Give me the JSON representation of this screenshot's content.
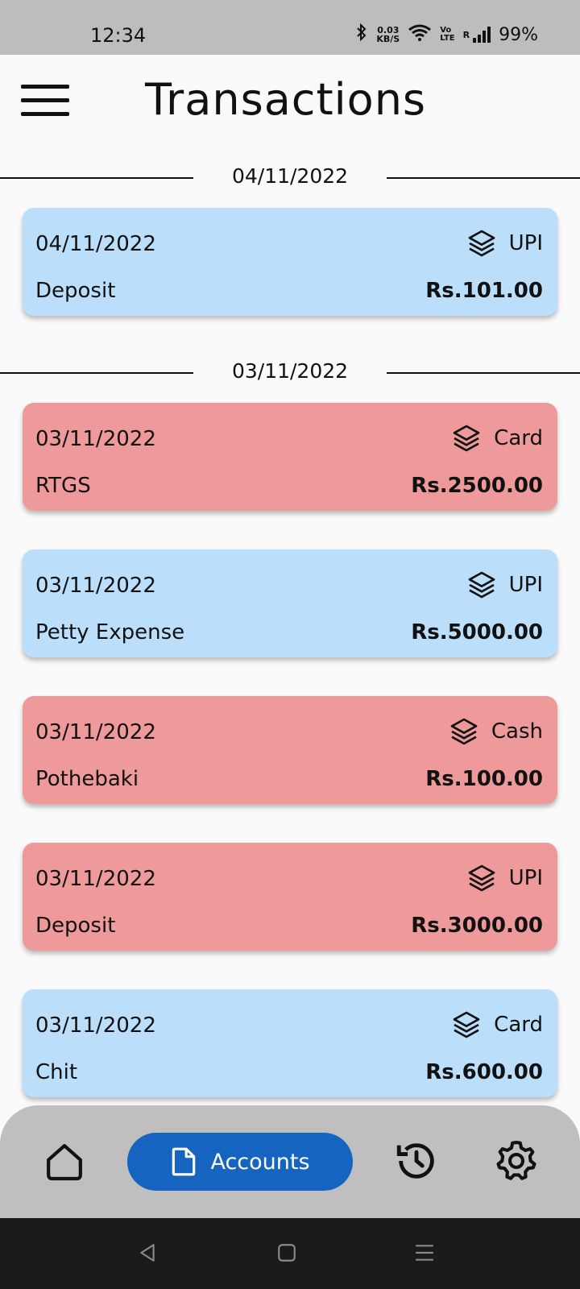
{
  "status_bar": {
    "time": "12:34",
    "net_speed_value": "0.03",
    "net_speed_unit": "KB/S",
    "volte_top": "Vo",
    "volte_bottom": "LTE",
    "roaming": "R",
    "battery": "99%"
  },
  "header": {
    "title": "Transactions",
    "menu_icon": "hamburger-menu-icon"
  },
  "groups": [
    {
      "date": "04/11/2022",
      "transactions": [
        {
          "date": "04/11/2022",
          "description": "Deposit",
          "method": "UPI",
          "amount": "Rs.101.00",
          "type": "credit"
        }
      ]
    },
    {
      "date": "03/11/2022",
      "transactions": [
        {
          "date": "03/11/2022",
          "description": "RTGS",
          "method": "Card",
          "amount": "Rs.2500.00",
          "type": "debit"
        },
        {
          "date": "03/11/2022",
          "description": "Petty Expense",
          "method": "UPI",
          "amount": "Rs.5000.00",
          "type": "credit"
        },
        {
          "date": "03/11/2022",
          "description": "Pothebaki",
          "method": "Cash",
          "amount": "Rs.100.00",
          "type": "debit"
        },
        {
          "date": "03/11/2022",
          "description": "Deposit",
          "method": "UPI",
          "amount": "Rs.3000.00",
          "type": "debit"
        },
        {
          "date": "03/11/2022",
          "description": "Chit",
          "method": "Card",
          "amount": "Rs.600.00",
          "type": "credit"
        }
      ]
    }
  ],
  "bottom_nav": {
    "items": [
      {
        "icon": "home-icon"
      },
      {
        "icon": "document-icon",
        "label": "Accounts",
        "active": true
      },
      {
        "icon": "history-icon"
      },
      {
        "icon": "gear-icon"
      }
    ]
  },
  "colors": {
    "credit": "#bbdefb",
    "debit": "#ef9a9a",
    "accent": "#1565c0"
  }
}
